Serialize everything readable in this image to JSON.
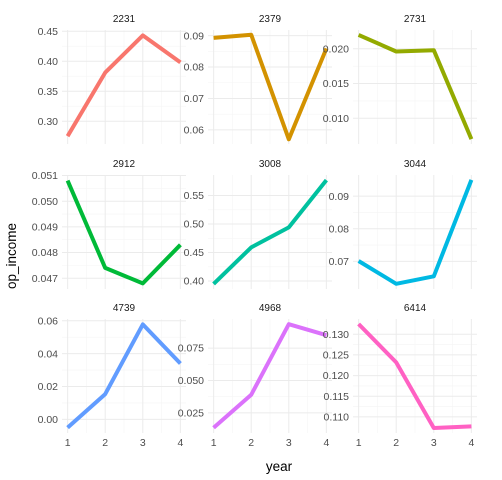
{
  "chart_data": {
    "type": "line",
    "layout": "facet_wrap",
    "xlabel": "year",
    "ylabel": "op_income",
    "x": [
      1,
      2,
      3,
      4
    ],
    "x_ticks": [
      "1",
      "2",
      "3",
      "4"
    ],
    "grid": true,
    "legend": "none",
    "panels": [
      {
        "title": "2231",
        "color": "#F8766D",
        "values": [
          0.275,
          0.381,
          0.443,
          0.398
        ],
        "ylim": [
          0.262,
          0.452
        ],
        "y_ticks": [
          0.3,
          0.35,
          0.4,
          0.45
        ],
        "y_tick_labels": [
          "0.30",
          "0.35",
          "0.40",
          "0.45"
        ]
      },
      {
        "title": "2379",
        "color": "#D39200",
        "values": [
          0.0893,
          0.0903,
          0.057,
          0.0859
        ],
        "ylim": [
          0.0555,
          0.0918
        ],
        "y_ticks": [
          0.06,
          0.07,
          0.08,
          0.09
        ],
        "y_tick_labels": [
          "0.06",
          "0.07",
          "0.08",
          "0.09"
        ]
      },
      {
        "title": "2731",
        "color": "#93AA00",
        "values": [
          0.022,
          0.0196,
          0.0198,
          0.007
        ],
        "ylim": [
          0.0063,
          0.0227
        ],
        "y_ticks": [
          0.01,
          0.015,
          0.02
        ],
        "y_tick_labels": [
          "0.010",
          "0.015",
          "0.020"
        ]
      },
      {
        "title": "2912",
        "color": "#00BA38",
        "values": [
          0.0508,
          0.0474,
          0.0468,
          0.0483
        ],
        "ylim": [
          0.04658,
          0.05102
        ],
        "y_ticks": [
          0.047,
          0.048,
          0.049,
          0.05,
          0.051
        ],
        "y_tick_labels": [
          "0.047",
          "0.048",
          "0.049",
          "0.050",
          "0.051"
        ]
      },
      {
        "title": "3008",
        "color": "#00C19F",
        "values": [
          0.395,
          0.459,
          0.494,
          0.577
        ],
        "ylim": [
          0.386,
          0.586
        ],
        "y_ticks": [
          0.4,
          0.45,
          0.5,
          0.55
        ],
        "y_tick_labels": [
          "0.40",
          "0.45",
          "0.50",
          "0.55"
        ]
      },
      {
        "title": "3044",
        "color": "#00B9E3",
        "values": [
          0.0701,
          0.0631,
          0.0654,
          0.095
        ],
        "ylim": [
          0.0615,
          0.0965
        ],
        "y_ticks": [
          0.07,
          0.08,
          0.09
        ],
        "y_tick_labels": [
          "0.07",
          "0.08",
          "0.09"
        ]
      },
      {
        "title": "4739",
        "color": "#619CFF",
        "values": [
          -0.005,
          0.0154,
          0.0578,
          0.034
        ],
        "ylim": [
          -0.0083,
          0.0611
        ],
        "y_ticks": [
          0.0,
          0.02,
          0.04,
          0.06
        ],
        "y_tick_labels": [
          "0.00",
          "0.02",
          "0.04",
          "0.06"
        ]
      },
      {
        "title": "4968",
        "color": "#DB72FB",
        "values": [
          0.0135,
          0.039,
          0.0935,
          0.085
        ],
        "ylim": [
          0.0095,
          0.0975
        ],
        "y_ticks": [
          0.025,
          0.05,
          0.075
        ],
        "y_tick_labels": [
          "0.025",
          "0.050",
          "0.075"
        ]
      },
      {
        "title": "6414",
        "color": "#FF61C3",
        "values": [
          0.1325,
          0.1232,
          0.1073,
          0.1077
        ],
        "ylim": [
          0.1061,
          0.1337
        ],
        "y_ticks": [
          0.11,
          0.115,
          0.12,
          0.125,
          0.13
        ],
        "y_tick_labels": [
          "0.110",
          "0.115",
          "0.120",
          "0.125",
          "0.130"
        ]
      }
    ]
  }
}
